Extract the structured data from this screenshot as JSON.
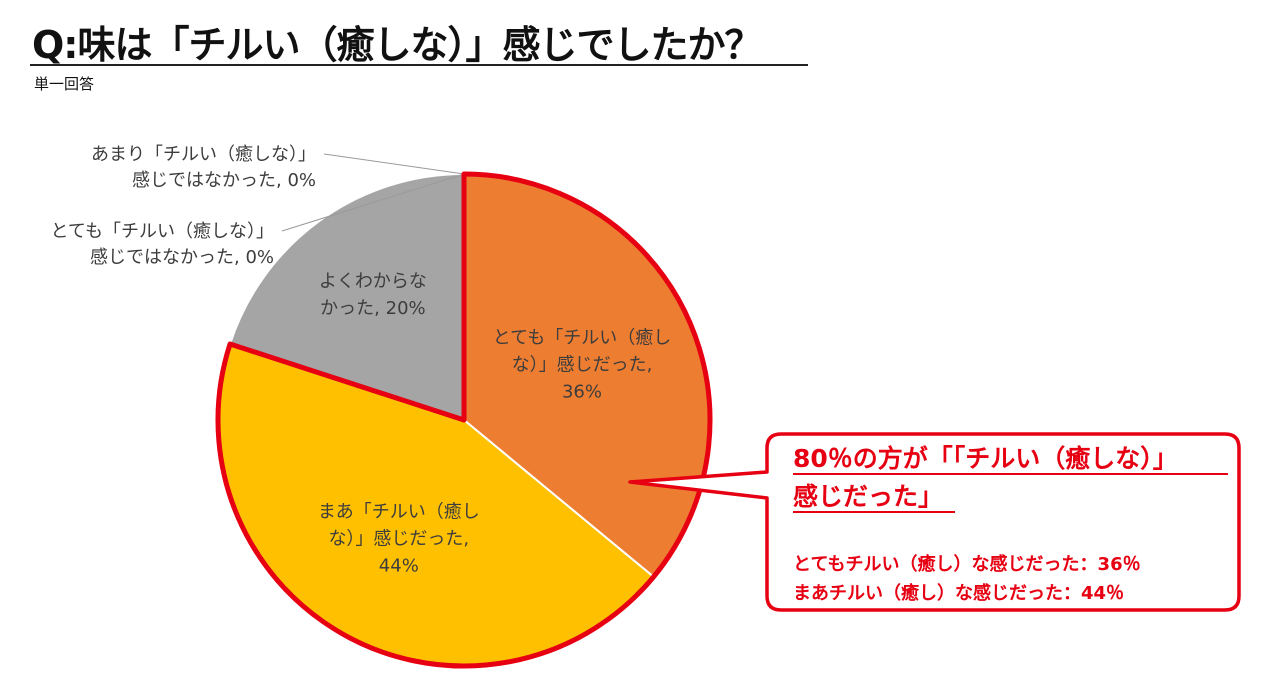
{
  "header": {
    "title": "Q:味は「チルい（癒しな）」感じでしたか？",
    "subtitle": "単一回答"
  },
  "chart_data": {
    "type": "pie",
    "start_angle_deg": 0,
    "direction": "clockwise",
    "slices": [
      {
        "label_lines": [
          "とても「チルい（癒し",
          "な）」感じだった,",
          "36%"
        ],
        "value": 36,
        "color": "#ed7d31",
        "label_position": "inside"
      },
      {
        "label_lines": [
          "まあ「チルい（癒し",
          "な）」感じだった,",
          "44%"
        ],
        "value": 44,
        "color": "#ffc000",
        "label_position": "inside"
      },
      {
        "label_lines": [
          "よくわからな",
          "かった, 20%"
        ],
        "value": 20,
        "color": "#a5a5a5",
        "label_position": "inside"
      },
      {
        "label_lines": [
          "とても「チルい（癒しな）」",
          "感じではなかった, 0%"
        ],
        "value": 0,
        "color": "#5b9bd5",
        "label_position": "outside"
      },
      {
        "label_lines": [
          "あまり「チルい（癒しな）」",
          "感じではなかった, 0%"
        ],
        "value": 0,
        "color": "#4472c4",
        "label_position": "outside"
      }
    ],
    "highlight": {
      "color": "#e60012",
      "slices": [
        0,
        1
      ]
    }
  },
  "callout": {
    "headline_lines": [
      "80％の方が「「チルい（癒しな）」",
      "感じだった」"
    ],
    "details": [
      "とてもチルい（癒し）な感じだった：36％",
      "まあチルい（癒し）な感じだった：44％"
    ],
    "color": "#e60012"
  }
}
